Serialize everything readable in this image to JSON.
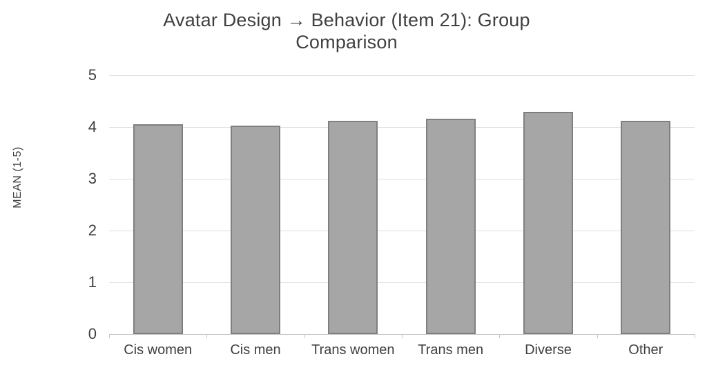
{
  "chart_data": {
    "type": "bar",
    "title": "Avatar Design → Behavior (Item 21): Group Comparison",
    "categories": [
      "Cis women",
      "Cis men",
      "Trans women",
      "Trans men",
      "Diverse",
      "Other"
    ],
    "values": [
      4.05,
      4.03,
      4.12,
      4.16,
      4.29,
      4.12
    ],
    "xlabel": "",
    "ylabel": "MEAN (1-5)",
    "ylim": [
      0,
      5
    ],
    "yticks": [
      0,
      1,
      2,
      3,
      4,
      5
    ],
    "grid": true,
    "legend": "none",
    "colors": {
      "bar_fill": "#a6a6a6",
      "bar_border": "#7f7f7f",
      "gridline": "#dedede",
      "axis_line": "#c6c6c6",
      "text": "#3f3f3f",
      "background": "#ffffff"
    }
  }
}
